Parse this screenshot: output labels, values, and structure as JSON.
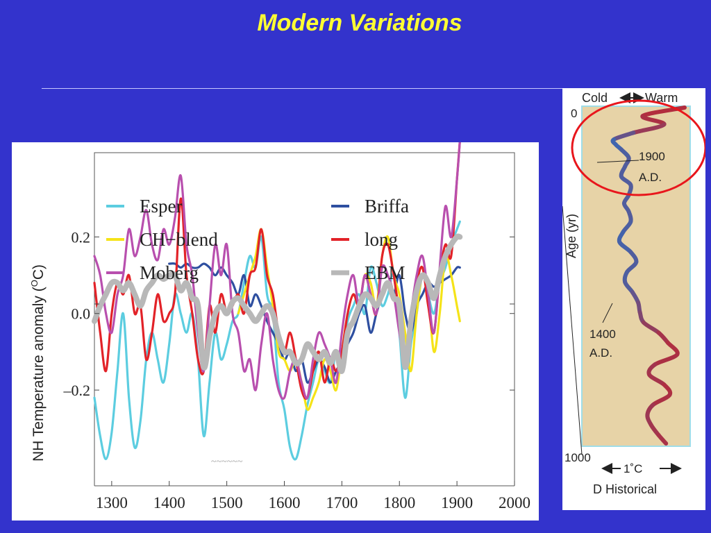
{
  "slide": {
    "title": "Modern Variations",
    "colors": {
      "background": "#3333cc",
      "title": "#ffff33",
      "panel": "#ffffff"
    }
  },
  "chart_data": [
    {
      "type": "line",
      "title": "",
      "xlabel": "",
      "ylabel": "NH Temperature anomaly (",
      "ylabel_unit": "O",
      "ylabel_tail": "C)",
      "xlim": [
        1270,
        2000
      ],
      "ylim": [
        -0.45,
        0.42
      ],
      "x_ticks": [
        1300,
        1400,
        1500,
        1600,
        1700,
        1800,
        1900,
        2000
      ],
      "x_tick_labels": [
        "1300",
        "1400",
        "1500",
        "1600",
        "1700",
        "1800",
        "1900",
        "2000"
      ],
      "y_ticks": [
        0.2,
        0.0,
        -0.2
      ],
      "y_tick_labels": [
        "0.2",
        "0.0",
        "–0.2"
      ],
      "grid": false,
      "legend_position": "top",
      "series": [
        {
          "name": "Esper",
          "color": "#5ccde0",
          "x": [
            1270,
            1280,
            1290,
            1300,
            1310,
            1320,
            1330,
            1340,
            1350,
            1360,
            1370,
            1380,
            1390,
            1400,
            1410,
            1420,
            1430,
            1440,
            1450,
            1460,
            1470,
            1480,
            1490,
            1500,
            1510,
            1520,
            1530,
            1540,
            1550,
            1560,
            1570,
            1580,
            1590,
            1600,
            1610,
            1620,
            1630,
            1640,
            1650,
            1660,
            1670,
            1680,
            1690,
            1700,
            1710,
            1720,
            1730,
            1740,
            1750,
            1760,
            1770,
            1780,
            1790,
            1800,
            1810,
            1820,
            1830,
            1840,
            1850,
            1860,
            1870,
            1880,
            1890,
            1900,
            1905
          ],
          "values": [
            -0.22,
            -0.32,
            -0.38,
            -0.31,
            -0.15,
            0.0,
            -0.22,
            -0.35,
            -0.28,
            -0.12,
            -0.05,
            -0.12,
            -0.18,
            -0.08,
            0.05,
            0.0,
            -0.05,
            0.0,
            -0.12,
            -0.32,
            -0.18,
            -0.05,
            -0.12,
            -0.08,
            -0.02,
            0.0,
            0.08,
            0.15,
            0.12,
            0.2,
            0.05,
            0.0,
            -0.18,
            -0.25,
            -0.35,
            -0.38,
            -0.32,
            -0.24,
            -0.18,
            -0.12,
            -0.15,
            -0.18,
            -0.1,
            -0.12,
            -0.02,
            0.02,
            0.05,
            0.0,
            0.12,
            0.08,
            0.02,
            0.05,
            0.1,
            -0.05,
            -0.22,
            -0.08,
            0.0,
            0.1,
            0.05,
            0.0,
            0.08,
            0.12,
            0.18,
            0.22,
            0.24
          ]
        },
        {
          "name": "Briffa",
          "color": "#2e4fa0",
          "x": [
            1400,
            1410,
            1420,
            1430,
            1440,
            1450,
            1460,
            1470,
            1480,
            1490,
            1500,
            1510,
            1520,
            1530,
            1540,
            1550,
            1560,
            1570,
            1580,
            1590,
            1600,
            1610,
            1620,
            1630,
            1640,
            1650,
            1660,
            1670,
            1680,
            1690,
            1700,
            1710,
            1720,
            1730,
            1740,
            1750,
            1760,
            1770,
            1780,
            1790,
            1800,
            1810,
            1820,
            1830,
            1840,
            1850,
            1860,
            1870,
            1880,
            1890,
            1900,
            1905
          ],
          "values": [
            0.13,
            0.13,
            0.12,
            0.13,
            0.12,
            0.12,
            0.13,
            0.12,
            0.1,
            0.12,
            0.1,
            0.08,
            0.05,
            0.1,
            0.02,
            0.05,
            0.02,
            -0.02,
            -0.05,
            -0.08,
            -0.12,
            -0.1,
            -0.15,
            -0.12,
            -0.18,
            -0.15,
            -0.12,
            -0.14,
            -0.18,
            -0.15,
            -0.12,
            -0.08,
            -0.05,
            0.0,
            0.02,
            -0.05,
            0.0,
            0.05,
            0.08,
            0.05,
            0.1,
            0.0,
            -0.05,
            0.02,
            0.05,
            0.08,
            0.07,
            0.08,
            0.09,
            0.1,
            0.12,
            0.12
          ]
        },
        {
          "name": "CH−blend",
          "color": "#f5e318",
          "x": [
            1520,
            1530,
            1540,
            1550,
            1560,
            1570,
            1580,
            1590,
            1600,
            1610,
            1620,
            1630,
            1640,
            1650,
            1660,
            1670,
            1680,
            1690,
            1700,
            1710,
            1720,
            1730,
            1740,
            1750,
            1760,
            1770,
            1780,
            1790,
            1800,
            1810,
            1820,
            1830,
            1840,
            1850,
            1860,
            1870,
            1880,
            1890,
            1900,
            1905
          ],
          "values": [
            0.0,
            0.05,
            0.1,
            0.15,
            0.22,
            0.12,
            0.02,
            -0.1,
            -0.12,
            -0.15,
            -0.12,
            -0.18,
            -0.25,
            -0.22,
            -0.18,
            -0.12,
            -0.15,
            -0.2,
            -0.1,
            0.0,
            0.05,
            0.02,
            0.1,
            0.08,
            0.02,
            0.15,
            0.2,
            0.1,
            0.05,
            -0.05,
            -0.15,
            0.0,
            0.1,
            0.05,
            -0.1,
            0.0,
            0.15,
            0.1,
            0.02,
            -0.02
          ]
        },
        {
          "name": "long",
          "color": "#e22228",
          "x": [
            1270,
            1280,
            1290,
            1300,
            1310,
            1320,
            1330,
            1340,
            1350,
            1360,
            1370,
            1380,
            1390,
            1400,
            1410,
            1420,
            1430,
            1440,
            1450,
            1460,
            1470,
            1480,
            1490,
            1500,
            1510,
            1520,
            1530,
            1540,
            1550,
            1560,
            1570,
            1580,
            1590,
            1600,
            1610,
            1620,
            1630,
            1640,
            1650,
            1660,
            1670,
            1680,
            1690,
            1700,
            1710,
            1720,
            1730,
            1740,
            1750,
            1760,
            1770,
            1780,
            1790,
            1800,
            1810,
            1820,
            1830,
            1840,
            1850,
            1860,
            1870,
            1880,
            1890,
            1900,
            1905
          ],
          "values": [
            0.08,
            -0.05,
            -0.15,
            0.0,
            0.08,
            0.05,
            0.1,
            0.0,
            0.02,
            -0.12,
            -0.05,
            0.05,
            -0.02,
            0.0,
            0.05,
            0.3,
            0.1,
            0.0,
            -0.12,
            -0.15,
            0.02,
            -0.05,
            0.05,
            0.0,
            0.02,
            0.05,
            0.0,
            0.1,
            0.12,
            0.22,
            0.1,
            0.05,
            -0.05,
            -0.1,
            -0.05,
            -0.12,
            -0.2,
            -0.22,
            -0.15,
            -0.1,
            -0.18,
            -0.12,
            -0.15,
            -0.1,
            0.0,
            0.05,
            0.02,
            0.1,
            0.05,
            0.0,
            0.15,
            0.18,
            0.1,
            0.0,
            -0.1,
            0.0,
            0.08,
            0.12,
            0.02,
            -0.05,
            0.1,
            0.18,
            0.15,
            0.35,
            0.45
          ]
        },
        {
          "name": "Moberg",
          "color": "#b84fae",
          "x": [
            1270,
            1280,
            1290,
            1300,
            1310,
            1320,
            1330,
            1340,
            1350,
            1360,
            1370,
            1380,
            1390,
            1400,
            1410,
            1420,
            1430,
            1440,
            1450,
            1460,
            1470,
            1480,
            1490,
            1500,
            1510,
            1520,
            1530,
            1540,
            1550,
            1560,
            1570,
            1580,
            1590,
            1600,
            1610,
            1620,
            1630,
            1640,
            1650,
            1660,
            1670,
            1680,
            1690,
            1700,
            1710,
            1720,
            1730,
            1740,
            1750,
            1760,
            1770,
            1780,
            1790,
            1800,
            1810,
            1820,
            1830,
            1840,
            1850,
            1860,
            1870,
            1880,
            1890,
            1900,
            1905
          ],
          "values": [
            0.15,
            0.1,
            0.0,
            -0.05,
            0.05,
            0.1,
            0.22,
            0.15,
            0.2,
            0.27,
            0.18,
            0.14,
            0.22,
            0.18,
            0.25,
            0.36,
            0.18,
            0.1,
            -0.05,
            -0.15,
            0.02,
            0.18,
            0.1,
            0.18,
            0.0,
            -0.05,
            -0.15,
            -0.12,
            -0.2,
            -0.08,
            0.0,
            -0.12,
            -0.2,
            -0.22,
            -0.15,
            -0.12,
            -0.18,
            -0.22,
            -0.12,
            -0.05,
            -0.08,
            -0.12,
            -0.18,
            -0.05,
            0.05,
            0.1,
            0.02,
            0.1,
            0.05,
            0.0,
            0.12,
            0.1,
            0.05,
            -0.05,
            -0.12,
            0.0,
            0.1,
            0.15,
            0.05,
            -0.05,
            0.12,
            0.28,
            0.2,
            0.35,
            0.45
          ]
        },
        {
          "name": "EBM",
          "color": "#b8b8b8",
          "x": [
            1270,
            1280,
            1290,
            1300,
            1310,
            1320,
            1330,
            1340,
            1350,
            1360,
            1370,
            1380,
            1390,
            1400,
            1410,
            1420,
            1430,
            1440,
            1450,
            1460,
            1470,
            1480,
            1490,
            1500,
            1510,
            1520,
            1530,
            1540,
            1550,
            1560,
            1570,
            1580,
            1590,
            1600,
            1610,
            1620,
            1630,
            1640,
            1650,
            1660,
            1670,
            1680,
            1690,
            1700,
            1710,
            1720,
            1730,
            1740,
            1750,
            1760,
            1770,
            1780,
            1790,
            1800,
            1810,
            1820,
            1830,
            1840,
            1850,
            1860,
            1870,
            1880,
            1890,
            1900,
            1905
          ],
          "values": [
            -0.02,
            0.02,
            0.05,
            0.08,
            0.08,
            0.06,
            0.08,
            0.05,
            0.02,
            0.06,
            0.08,
            0.1,
            0.09,
            0.1,
            0.1,
            0.06,
            0.08,
            0.04,
            0.02,
            -0.14,
            -0.06,
            0.0,
            0.02,
            0.0,
            0.03,
            0.04,
            0.02,
            0.0,
            -0.02,
            0.0,
            0.02,
            0.0,
            -0.06,
            -0.1,
            -0.1,
            -0.13,
            -0.12,
            -0.08,
            -0.1,
            -0.12,
            -0.1,
            -0.13,
            -0.1,
            -0.15,
            -0.05,
            -0.02,
            0.02,
            0.05,
            0.04,
            0.02,
            0.05,
            0.08,
            0.04,
            0.02,
            -0.14,
            -0.02,
            0.06,
            0.1,
            0.08,
            0.04,
            0.1,
            0.15,
            0.18,
            0.2,
            0.2
          ]
        }
      ],
      "partial_text": "~~~~~~"
    },
    {
      "type": "line",
      "title": "",
      "header_left": "Cold",
      "header_right": "Warm",
      "ylabel": "Age (yr)",
      "y_top_label": "0",
      "y_bottom_label": "1000",
      "ylim": [
        0,
        1000
      ],
      "xlabel": "D Historical",
      "scale_label": "1˚C",
      "annotations": [
        {
          "line1": "1900",
          "line2": "A.D.",
          "age": 100
        },
        {
          "line1": "1400",
          "line2": "A.D.",
          "age": 600
        }
      ],
      "highlight_circle": "#e8161c",
      "colors": {
        "fill": "#e7d3a7",
        "frame": "#9fdde8",
        "cold": "#3a68b4",
        "warm": "#b82a38"
      },
      "curve": {
        "age": [
          0,
          25,
          50,
          75,
          95,
          110,
          125,
          150,
          175,
          205,
          230,
          260,
          285,
          310,
          340,
          370,
          400,
          430,
          460,
          490,
          520,
          550,
          580,
          610,
          640,
          670,
          700,
          735,
          765,
          795,
          825,
          855,
          885,
          915,
          945,
          975,
          1000
        ],
        "temp": [
          1.0,
          0.55,
          0.78,
          0.45,
          0.24,
          0.26,
          0.32,
          0.4,
          0.36,
          0.32,
          0.42,
          0.4,
          0.35,
          0.4,
          0.42,
          0.34,
          0.3,
          0.42,
          0.48,
          0.38,
          0.36,
          0.44,
          0.5,
          0.52,
          0.56,
          0.72,
          0.82,
          0.92,
          0.68,
          0.62,
          0.78,
          0.84,
          0.66,
          0.6,
          0.64,
          0.72,
          0.8
        ],
        "warmth": [
          1.0,
          0.9,
          0.9,
          0.6,
          0.1,
          0.0,
          0.1,
          0.2,
          0.2,
          0.15,
          0.2,
          0.2,
          0.15,
          0.2,
          0.2,
          0.1,
          0.05,
          0.15,
          0.2,
          0.15,
          0.15,
          0.25,
          0.4,
          0.5,
          0.6,
          0.8,
          0.9,
          0.95,
          0.85,
          0.8,
          0.9,
          0.95,
          0.85,
          0.75,
          0.8,
          0.85,
          0.9
        ]
      }
    }
  ]
}
